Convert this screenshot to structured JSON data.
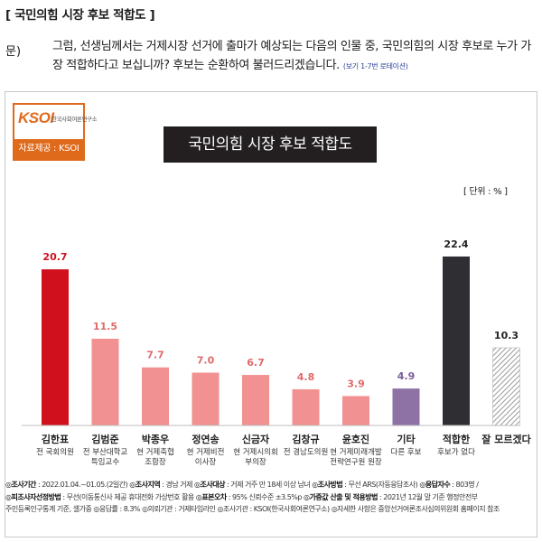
{
  "heading": "[ 국민의힘 시장 후보 적합도 ]",
  "question": {
    "label": "문)",
    "text": "그럼, 선생님께서는 거제시장 선거에 출마가 예상되는 다음의 인물 중, 국민의힘의 시장 후보로 누가 가장 적합하다고 보십니까? 후보는 순환하여 불러드리겠습니다.",
    "note": "(보기 1-7번 로테이션)"
  },
  "logo": {
    "name": "KSOI",
    "org": "한국사회여론연구소",
    "source": "자료제공 : KSOI"
  },
  "chart_data": {
    "type": "bar",
    "title": "국민의힘 시장 후보 적합도",
    "unit": "[ 단위 : % ]",
    "categories": [
      {
        "name": "김한표",
        "desc": [
          "전 국회의원"
        ]
      },
      {
        "name": "김범준",
        "desc": [
          "전 부산대학교",
          "특임교수"
        ]
      },
      {
        "name": "박종우",
        "desc": [
          "현 거제축협",
          "조합장"
        ]
      },
      {
        "name": "정연송",
        "desc": [
          "현 거제비전",
          "이사장"
        ]
      },
      {
        "name": "신금자",
        "desc": [
          "현 거제시의회",
          "부의장"
        ]
      },
      {
        "name": "김창규",
        "desc": [
          "전 경남도의원"
        ]
      },
      {
        "name": "윤호진",
        "desc": [
          "현 거제미래개발",
          "전략연구원 원장"
        ]
      },
      {
        "name": "기타",
        "desc": [
          "다른 후보"
        ]
      },
      {
        "name": "적합한",
        "desc": [
          "후보가 없다"
        ]
      },
      {
        "name": "잘 모르겠다",
        "desc": []
      }
    ],
    "values": [
      20.7,
      11.5,
      7.7,
      7.0,
      6.7,
      4.8,
      3.9,
      4.9,
      22.4,
      10.3
    ],
    "labels": [
      "20.7",
      "11.5",
      "7.7",
      "7.0",
      "6.7",
      "4.8",
      "3.9",
      "4.9",
      "22.4",
      "10.3"
    ],
    "colors": [
      "#d0111d",
      "#f29191",
      "#f29191",
      "#f29191",
      "#f29191",
      "#f29191",
      "#f29191",
      "#8e72a6",
      "#2f2f33",
      "hatch"
    ],
    "label_colors": [
      "#d0111d",
      "#e06a6a",
      "#e06a6a",
      "#e06a6a",
      "#e06a6a",
      "#e06a6a",
      "#e06a6a",
      "#7a5a9a",
      "#222222",
      "#222222"
    ],
    "ylim": [
      0,
      25
    ],
    "grid": false
  },
  "notes": [
    [
      "◎조사기간",
      " : 2022.01.04.~01.05.(2일간)  ",
      "◎조사지역",
      " : 경남 거제  ",
      "◎조사대상",
      " : 거제 거주 만 18세 이상 남녀  ",
      "◎조사방법",
      " : 무선 ARS(자동응답조사)  ",
      "◎응답자수",
      " : 803명 /"
    ],
    [
      "◎피조사자선정방법",
      " : 무선(이동통신사 제공 휴대전화 가상번호 활용  ",
      "◎표본오차",
      " : 95% 신뢰수준 ±3.5%p  ",
      "◎가중값 산출 및 적용방법",
      " : 2021년 12월 말 기준 행정안전부"
    ],
    [
      "주민등록인구통계 기준, 셀가중  ",
      "◎응답률",
      " : 8.3%  ",
      "◎의뢰기관",
      " : 거제타임라인  ",
      "◎조사기관",
      " : KSOI(한국사회여론연구소)  ",
      "◎자세한 사항은 중앙선거여론조사심의위원회 홈페이지 참조",
      ""
    ]
  ]
}
